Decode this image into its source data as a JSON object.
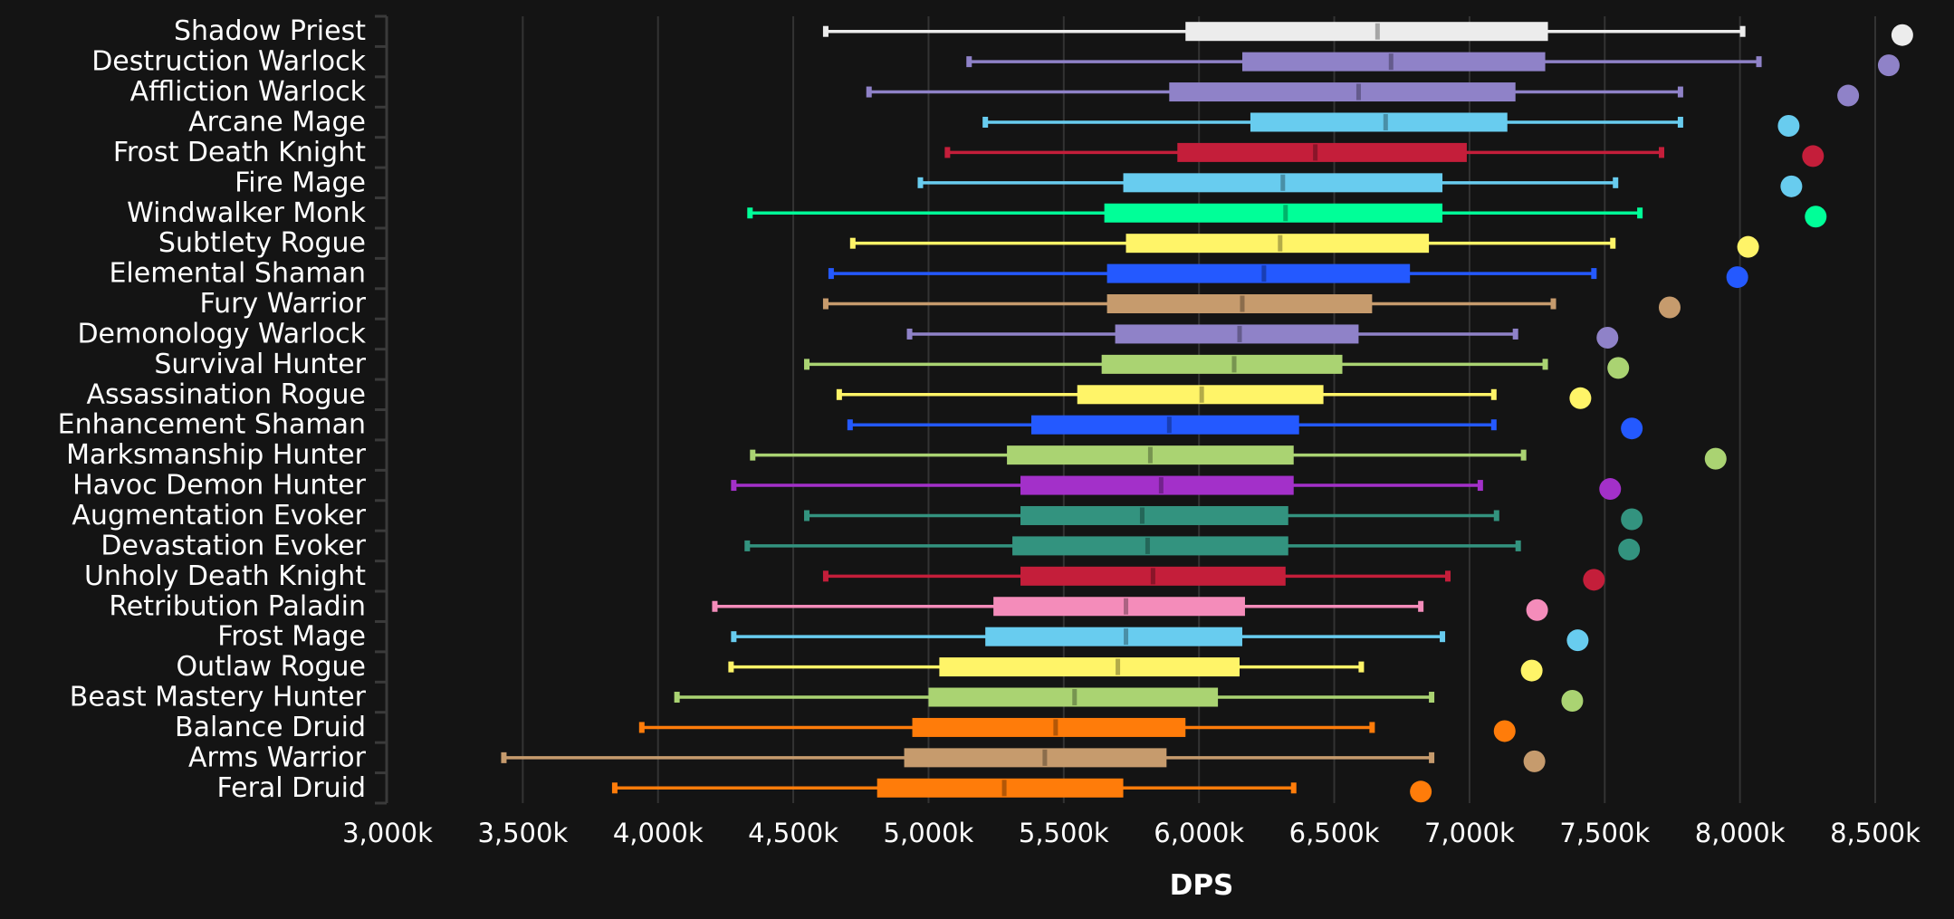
{
  "chart_data": {
    "type": "box",
    "title": "",
    "xlabel": "DPS",
    "ylabel": "",
    "xlim": [
      3000,
      8500
    ],
    "unit_suffix": "k",
    "grid": true,
    "orientation": "horizontal",
    "x_ticks": [
      "3,000k",
      "3,500k",
      "4,000k",
      "4,500k",
      "5,000k",
      "5,500k",
      "6,000k",
      "6,500k",
      "7,000k",
      "7,500k",
      "8,000k",
      "8,500k"
    ],
    "x_tick_values": [
      3000,
      3500,
      4000,
      4500,
      5000,
      5500,
      6000,
      6500,
      7000,
      7500,
      8000,
      8500
    ],
    "series": [
      {
        "name": "Shadow Priest",
        "color": "#ececec",
        "min": 4620,
        "q1": 5950,
        "median": 6660,
        "q3": 7290,
        "max": 8010,
        "top": 8600
      },
      {
        "name": "Destruction Warlock",
        "color": "#8f82c8",
        "min": 5150,
        "q1": 6160,
        "median": 6710,
        "q3": 7280,
        "max": 8070,
        "top": 8550
      },
      {
        "name": "Affliction Warlock",
        "color": "#8f82c8",
        "min": 4780,
        "q1": 5890,
        "median": 6590,
        "q3": 7170,
        "max": 7780,
        "top": 8400
      },
      {
        "name": "Arcane Mage",
        "color": "#68ccef",
        "min": 5210,
        "q1": 6190,
        "median": 6690,
        "q3": 7140,
        "max": 7780,
        "top": 8180
      },
      {
        "name": "Frost Death Knight",
        "color": "#c41e3a",
        "min": 5070,
        "q1": 5920,
        "median": 6430,
        "q3": 6990,
        "max": 7710,
        "top": 8270
      },
      {
        "name": "Fire Mage",
        "color": "#68ccef",
        "min": 4970,
        "q1": 5720,
        "median": 6310,
        "q3": 6900,
        "max": 7540,
        "top": 8190
      },
      {
        "name": "Windwalker Monk",
        "color": "#00ff98",
        "min": 4340,
        "q1": 5650,
        "median": 6320,
        "q3": 6900,
        "max": 7630,
        "top": 8280
      },
      {
        "name": "Subtlety Rogue",
        "color": "#fff468",
        "min": 4720,
        "q1": 5730,
        "median": 6300,
        "q3": 6850,
        "max": 7530,
        "top": 8030
      },
      {
        "name": "Elemental Shaman",
        "color": "#2459ff",
        "min": 4640,
        "q1": 5660,
        "median": 6240,
        "q3": 6780,
        "max": 7460,
        "top": 7990
      },
      {
        "name": "Fury Warrior",
        "color": "#c69b6d",
        "min": 4620,
        "q1": 5660,
        "median": 6160,
        "q3": 6640,
        "max": 7310,
        "top": 7740
      },
      {
        "name": "Demonology Warlock",
        "color": "#8f82c8",
        "min": 4930,
        "q1": 5690,
        "median": 6150,
        "q3": 6590,
        "max": 7170,
        "top": 7510
      },
      {
        "name": "Survival Hunter",
        "color": "#aad372",
        "min": 4550,
        "q1": 5640,
        "median": 6130,
        "q3": 6530,
        "max": 7280,
        "top": 7550
      },
      {
        "name": "Assassination Rogue",
        "color": "#fff468",
        "min": 4670,
        "q1": 5550,
        "median": 6010,
        "q3": 6460,
        "max": 7090,
        "top": 7410
      },
      {
        "name": "Enhancement Shaman",
        "color": "#2459ff",
        "min": 4710,
        "q1": 5380,
        "median": 5890,
        "q3": 6370,
        "max": 7090,
        "top": 7600
      },
      {
        "name": "Marksmanship Hunter",
        "color": "#aad372",
        "min": 4350,
        "q1": 5290,
        "median": 5820,
        "q3": 6350,
        "max": 7200,
        "top": 7910
      },
      {
        "name": "Havoc Demon Hunter",
        "color": "#a330c9",
        "min": 4280,
        "q1": 5340,
        "median": 5860,
        "q3": 6350,
        "max": 7040,
        "top": 7520
      },
      {
        "name": "Augmentation Evoker",
        "color": "#33937f",
        "min": 4550,
        "q1": 5340,
        "median": 5790,
        "q3": 6330,
        "max": 7100,
        "top": 7600
      },
      {
        "name": "Devastation Evoker",
        "color": "#33937f",
        "min": 4330,
        "q1": 5310,
        "median": 5810,
        "q3": 6330,
        "max": 7180,
        "top": 7590
      },
      {
        "name": "Unholy Death Knight",
        "color": "#c41e3a",
        "min": 4620,
        "q1": 5340,
        "median": 5830,
        "q3": 6320,
        "max": 6920,
        "top": 7460
      },
      {
        "name": "Retribution Paladin",
        "color": "#f48cba",
        "min": 4210,
        "q1": 5240,
        "median": 5730,
        "q3": 6170,
        "max": 6820,
        "top": 7250
      },
      {
        "name": "Frost Mage",
        "color": "#68ccef",
        "min": 4280,
        "q1": 5210,
        "median": 5730,
        "q3": 6160,
        "max": 6900,
        "top": 7400
      },
      {
        "name": "Outlaw Rogue",
        "color": "#fff468",
        "min": 4270,
        "q1": 5040,
        "median": 5700,
        "q3": 6150,
        "max": 6600,
        "top": 7230
      },
      {
        "name": "Beast Mastery Hunter",
        "color": "#aad372",
        "min": 4070,
        "q1": 5000,
        "median": 5540,
        "q3": 6070,
        "max": 6860,
        "top": 7380
      },
      {
        "name": "Balance Druid",
        "color": "#ff7c0a",
        "min": 3940,
        "q1": 4940,
        "median": 5470,
        "q3": 5950,
        "max": 6640,
        "top": 7130
      },
      {
        "name": "Arms Warrior",
        "color": "#c69b6d",
        "min": 3430,
        "q1": 4910,
        "median": 5430,
        "q3": 5880,
        "max": 6860,
        "top": 7240
      },
      {
        "name": "Feral Druid",
        "color": "#ff7c0a",
        "min": 3840,
        "q1": 4810,
        "median": 5280,
        "q3": 5720,
        "max": 6350,
        "top": 6820
      }
    ]
  }
}
